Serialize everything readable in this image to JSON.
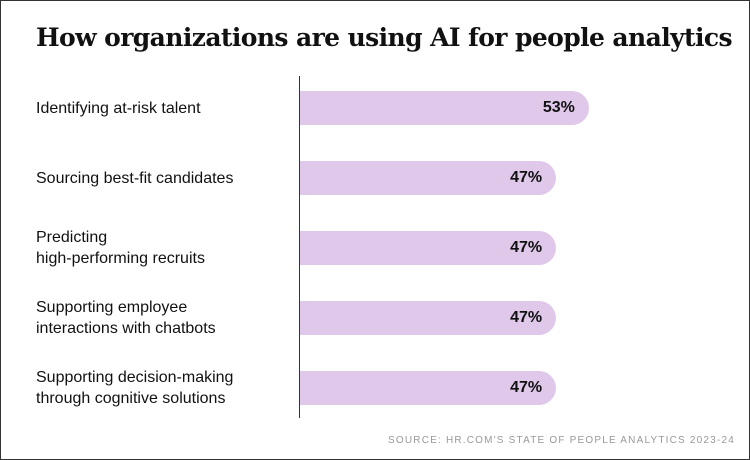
{
  "chart_data": {
    "type": "bar",
    "orientation": "horizontal",
    "title": "How organizations are using AI for people analytics",
    "categories": [
      "Identifying at-risk talent",
      "Sourcing best-fit candidates",
      "Predicting\nhigh-performing recruits",
      "Supporting employee\ninteractions with chatbots",
      "Supporting decision-making\nthrough cognitive solutions"
    ],
    "values": [
      53,
      47,
      47,
      47,
      47
    ],
    "value_labels": [
      "53%",
      "47%",
      "47%",
      "47%",
      "47%"
    ],
    "unit": "%",
    "bar_color": "#dfc8ea",
    "grid": false,
    "source": "SOURCE: HR.COM'S STATE OF PEOPLE ANALYTICS 2023-24"
  }
}
